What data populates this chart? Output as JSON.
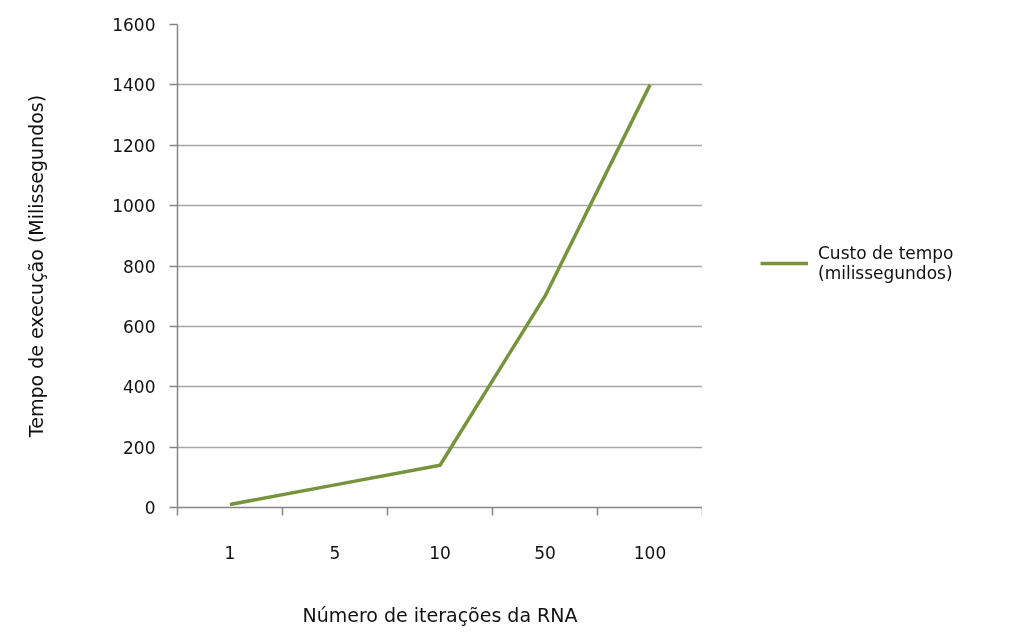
{
  "chart_data": {
    "type": "line",
    "xlabel": "Número de iterações da RNA",
    "ylabel": "Tempo de execução (Milissegundos)",
    "categories": [
      "1",
      "5",
      "10",
      "50",
      "100"
    ],
    "series": [
      {
        "name": "Custo de tempo (milissegundos)",
        "color": "#77933c",
        "values": [
          10,
          75,
          140,
          700,
          1400
        ]
      }
    ],
    "ylim": [
      0,
      1600
    ],
    "yticks": [
      0,
      200,
      400,
      600,
      800,
      1000,
      1200,
      1400,
      1600
    ],
    "grid": "y",
    "legend": "right"
  }
}
